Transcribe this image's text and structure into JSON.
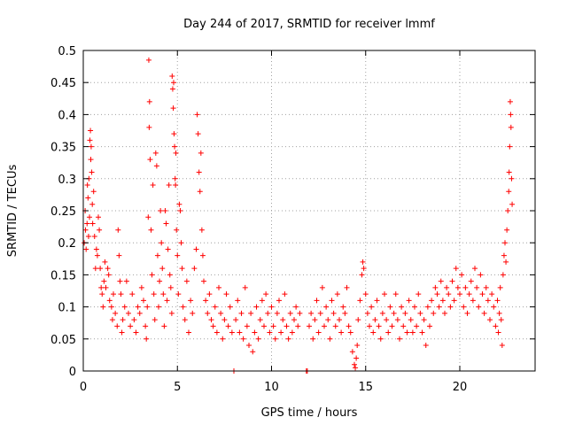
{
  "chart_data": {
    "type": "scatter",
    "title": "Day 244 of 2017, SRMTID for receiver lmmf",
    "xlabel": "GPS time / hours",
    "ylabel": "SRMTID / TECUs",
    "xlim": [
      0,
      24
    ],
    "ylim": [
      0,
      0.5
    ],
    "x_ticks": [
      0,
      5,
      10,
      15,
      20
    ],
    "x_tick_labels": [
      "0",
      "5",
      "10",
      "15",
      "20"
    ],
    "y_ticks": [
      0,
      0.05,
      0.1,
      0.15,
      0.2,
      0.25,
      0.3,
      0.35,
      0.4,
      0.45,
      0.5
    ],
    "y_tick_labels": [
      "0",
      "0.05",
      "0.1",
      "0.15",
      "0.2",
      "0.25",
      "0.3",
      "0.35",
      "0.4",
      "0.45",
      "0.5"
    ],
    "grid": true,
    "marker": "+",
    "color": "#ff0000",
    "series": [
      {
        "name": "SRMTID",
        "points": [
          [
            0.05,
            0.2
          ],
          [
            0.1,
            0.25
          ],
          [
            0.12,
            0.22
          ],
          [
            0.15,
            0.19
          ],
          [
            0.2,
            0.23
          ],
          [
            0.22,
            0.29
          ],
          [
            0.25,
            0.27
          ],
          [
            0.28,
            0.21
          ],
          [
            0.3,
            0.3
          ],
          [
            0.33,
            0.24
          ],
          [
            0.35,
            0.36
          ],
          [
            0.38,
            0.375
          ],
          [
            0.4,
            0.33
          ],
          [
            0.42,
            0.35
          ],
          [
            0.45,
            0.31
          ],
          [
            0.48,
            0.26
          ],
          [
            0.5,
            0.23
          ],
          [
            0.55,
            0.28
          ],
          [
            0.6,
            0.21
          ],
          [
            0.65,
            0.16
          ],
          [
            0.7,
            0.19
          ],
          [
            0.75,
            0.18
          ],
          [
            0.8,
            0.24
          ],
          [
            0.85,
            0.22
          ],
          [
            0.9,
            0.16
          ],
          [
            0.95,
            0.13
          ],
          [
            1.0,
            0.12
          ],
          [
            1.05,
            0.1
          ],
          [
            1.1,
            0.14
          ],
          [
            1.15,
            0.17
          ],
          [
            1.2,
            0.13
          ],
          [
            1.3,
            0.16
          ],
          [
            1.35,
            0.15
          ],
          [
            1.4,
            0.11
          ],
          [
            1.5,
            0.1
          ],
          [
            1.55,
            0.08
          ],
          [
            1.6,
            0.12
          ],
          [
            1.7,
            0.09
          ],
          [
            1.8,
            0.07
          ],
          [
            1.85,
            0.22
          ],
          [
            1.9,
            0.18
          ],
          [
            1.95,
            0.14
          ],
          [
            2.0,
            0.12
          ],
          [
            2.05,
            0.06
          ],
          [
            2.1,
            0.08
          ],
          [
            2.2,
            0.1
          ],
          [
            2.3,
            0.14
          ],
          [
            2.4,
            0.09
          ],
          [
            2.5,
            0.07
          ],
          [
            2.6,
            0.12
          ],
          [
            2.7,
            0.08
          ],
          [
            2.8,
            0.06
          ],
          [
            2.9,
            0.1
          ],
          [
            3.0,
            0.09
          ],
          [
            3.1,
            0.13
          ],
          [
            3.2,
            0.11
          ],
          [
            3.3,
            0.07
          ],
          [
            3.35,
            0.05
          ],
          [
            3.4,
            0.1
          ],
          [
            3.45,
            0.24
          ],
          [
            3.48,
            0.485
          ],
          [
            3.5,
            0.38
          ],
          [
            3.52,
            0.42
          ],
          [
            3.55,
            0.33
          ],
          [
            3.6,
            0.22
          ],
          [
            3.65,
            0.15
          ],
          [
            3.7,
            0.29
          ],
          [
            3.75,
            0.12
          ],
          [
            3.8,
            0.08
          ],
          [
            3.85,
            0.34
          ],
          [
            3.9,
            0.32
          ],
          [
            3.95,
            0.18
          ],
          [
            4.0,
            0.1
          ],
          [
            4.05,
            0.14
          ],
          [
            4.1,
            0.25
          ],
          [
            4.15,
            0.2
          ],
          [
            4.2,
            0.16
          ],
          [
            4.25,
            0.12
          ],
          [
            4.3,
            0.07
          ],
          [
            4.35,
            0.25
          ],
          [
            4.4,
            0.23
          ],
          [
            4.45,
            0.11
          ],
          [
            4.5,
            0.19
          ],
          [
            4.55,
            0.29
          ],
          [
            4.6,
            0.15
          ],
          [
            4.65,
            0.13
          ],
          [
            4.7,
            0.09
          ],
          [
            4.72,
            0.46
          ],
          [
            4.75,
            0.44
          ],
          [
            4.78,
            0.41
          ],
          [
            4.8,
            0.45
          ],
          [
            4.82,
            0.37
          ],
          [
            4.85,
            0.35
          ],
          [
            4.88,
            0.3
          ],
          [
            4.9,
            0.29
          ],
          [
            4.92,
            0.34
          ],
          [
            4.95,
            0.22
          ],
          [
            5.0,
            0.18
          ],
          [
            5.05,
            0.12
          ],
          [
            5.1,
            0.26
          ],
          [
            5.15,
            0.25
          ],
          [
            5.2,
            0.2
          ],
          [
            5.25,
            0.16
          ],
          [
            5.3,
            0.1
          ],
          [
            5.4,
            0.08
          ],
          [
            5.5,
            0.14
          ],
          [
            5.6,
            0.06
          ],
          [
            5.7,
            0.11
          ],
          [
            5.8,
            0.09
          ],
          [
            5.9,
            0.16
          ],
          [
            6.0,
            0.19
          ],
          [
            6.05,
            0.4
          ],
          [
            6.1,
            0.37
          ],
          [
            6.15,
            0.31
          ],
          [
            6.2,
            0.28
          ],
          [
            6.25,
            0.34
          ],
          [
            6.3,
            0.22
          ],
          [
            6.35,
            0.18
          ],
          [
            6.4,
            0.14
          ],
          [
            6.5,
            0.11
          ],
          [
            6.6,
            0.09
          ],
          [
            6.7,
            0.12
          ],
          [
            6.8,
            0.08
          ],
          [
            6.9,
            0.07
          ],
          [
            7.0,
            0.1
          ],
          [
            7.1,
            0.06
          ],
          [
            7.2,
            0.13
          ],
          [
            7.3,
            0.09
          ],
          [
            7.4,
            0.05
          ],
          [
            7.5,
            0.08
          ],
          [
            7.6,
            0.12
          ],
          [
            7.7,
            0.07
          ],
          [
            7.8,
            0.1
          ],
          [
            7.9,
            0.06
          ],
          [
            8.0,
            0.0
          ],
          [
            8.1,
            0.08
          ],
          [
            8.2,
            0.11
          ],
          [
            8.3,
            0.06
          ],
          [
            8.4,
            0.09
          ],
          [
            8.5,
            0.05
          ],
          [
            8.6,
            0.13
          ],
          [
            8.7,
            0.07
          ],
          [
            8.8,
            0.04
          ],
          [
            8.9,
            0.09
          ],
          [
            9.0,
            0.03
          ],
          [
            9.1,
            0.06
          ],
          [
            9.2,
            0.1
          ],
          [
            9.3,
            0.05
          ],
          [
            9.4,
            0.08
          ],
          [
            9.5,
            0.11
          ],
          [
            9.6,
            0.07
          ],
          [
            9.7,
            0.12
          ],
          [
            9.8,
            0.09
          ],
          [
            9.9,
            0.06
          ],
          [
            10.0,
            0.1
          ],
          [
            10.1,
            0.07
          ],
          [
            10.2,
            0.05
          ],
          [
            10.3,
            0.09
          ],
          [
            10.4,
            0.11
          ],
          [
            10.5,
            0.06
          ],
          [
            10.6,
            0.08
          ],
          [
            10.7,
            0.12
          ],
          [
            10.8,
            0.07
          ],
          [
            10.9,
            0.05
          ],
          [
            11.0,
            0.09
          ],
          [
            11.1,
            0.06
          ],
          [
            11.2,
            0.08
          ],
          [
            11.3,
            0.1
          ],
          [
            11.4,
            0.07
          ],
          [
            11.5,
            0.09
          ],
          [
            11.85,
            0.0
          ],
          [
            11.9,
            0.0
          ],
          [
            12.0,
            0.07
          ],
          [
            12.1,
            0.09
          ],
          [
            12.2,
            0.05
          ],
          [
            12.3,
            0.08
          ],
          [
            12.4,
            0.11
          ],
          [
            12.5,
            0.06
          ],
          [
            12.6,
            0.09
          ],
          [
            12.7,
            0.13
          ],
          [
            12.8,
            0.07
          ],
          [
            12.9,
            0.1
          ],
          [
            13.0,
            0.08
          ],
          [
            13.1,
            0.05
          ],
          [
            13.2,
            0.11
          ],
          [
            13.3,
            0.09
          ],
          [
            13.4,
            0.07
          ],
          [
            13.5,
            0.12
          ],
          [
            13.6,
            0.08
          ],
          [
            13.7,
            0.06
          ],
          [
            13.8,
            0.1
          ],
          [
            13.9,
            0.09
          ],
          [
            14.0,
            0.13
          ],
          [
            14.1,
            0.07
          ],
          [
            14.2,
            0.06
          ],
          [
            14.3,
            0.03
          ],
          [
            14.4,
            0.01
          ],
          [
            14.45,
            0.005
          ],
          [
            14.5,
            0.02
          ],
          [
            14.55,
            0.04
          ],
          [
            14.6,
            0.08
          ],
          [
            14.7,
            0.11
          ],
          [
            14.8,
            0.15
          ],
          [
            14.85,
            0.17
          ],
          [
            14.9,
            0.16
          ],
          [
            15.0,
            0.12
          ],
          [
            15.1,
            0.09
          ],
          [
            15.2,
            0.07
          ],
          [
            15.3,
            0.1
          ],
          [
            15.4,
            0.06
          ],
          [
            15.5,
            0.08
          ],
          [
            15.6,
            0.11
          ],
          [
            15.7,
            0.07
          ],
          [
            15.8,
            0.05
          ],
          [
            15.9,
            0.09
          ],
          [
            16.0,
            0.12
          ],
          [
            16.1,
            0.08
          ],
          [
            16.2,
            0.06
          ],
          [
            16.3,
            0.1
          ],
          [
            16.4,
            0.07
          ],
          [
            16.5,
            0.09
          ],
          [
            16.6,
            0.12
          ],
          [
            16.7,
            0.08
          ],
          [
            16.8,
            0.05
          ],
          [
            16.9,
            0.1
          ],
          [
            17.0,
            0.07
          ],
          [
            17.1,
            0.09
          ],
          [
            17.2,
            0.06
          ],
          [
            17.3,
            0.11
          ],
          [
            17.4,
            0.08
          ],
          [
            17.5,
            0.06
          ],
          [
            17.6,
            0.1
          ],
          [
            17.7,
            0.07
          ],
          [
            17.8,
            0.12
          ],
          [
            17.9,
            0.09
          ],
          [
            18.0,
            0.06
          ],
          [
            18.1,
            0.08
          ],
          [
            18.2,
            0.04
          ],
          [
            18.3,
            0.1
          ],
          [
            18.4,
            0.07
          ],
          [
            18.5,
            0.11
          ],
          [
            18.6,
            0.09
          ],
          [
            18.7,
            0.13
          ],
          [
            18.8,
            0.12
          ],
          [
            18.9,
            0.1
          ],
          [
            19.0,
            0.14
          ],
          [
            19.1,
            0.11
          ],
          [
            19.2,
            0.09
          ],
          [
            19.3,
            0.13
          ],
          [
            19.4,
            0.12
          ],
          [
            19.5,
            0.1
          ],
          [
            19.6,
            0.14
          ],
          [
            19.7,
            0.11
          ],
          [
            19.8,
            0.16
          ],
          [
            19.9,
            0.13
          ],
          [
            20.0,
            0.12
          ],
          [
            20.1,
            0.15
          ],
          [
            20.2,
            0.1
          ],
          [
            20.3,
            0.13
          ],
          [
            20.4,
            0.09
          ],
          [
            20.5,
            0.12
          ],
          [
            20.6,
            0.14
          ],
          [
            20.7,
            0.11
          ],
          [
            20.8,
            0.16
          ],
          [
            20.9,
            0.13
          ],
          [
            21.0,
            0.1
          ],
          [
            21.1,
            0.15
          ],
          [
            21.2,
            0.12
          ],
          [
            21.3,
            0.09
          ],
          [
            21.4,
            0.13
          ],
          [
            21.5,
            0.11
          ],
          [
            21.6,
            0.08
          ],
          [
            21.7,
            0.12
          ],
          [
            21.8,
            0.1
          ],
          [
            21.9,
            0.07
          ],
          [
            22.0,
            0.11
          ],
          [
            22.05,
            0.06
          ],
          [
            22.1,
            0.09
          ],
          [
            22.15,
            0.13
          ],
          [
            22.2,
            0.08
          ],
          [
            22.25,
            0.04
          ],
          [
            22.3,
            0.15
          ],
          [
            22.35,
            0.18
          ],
          [
            22.4,
            0.2
          ],
          [
            22.45,
            0.17
          ],
          [
            22.5,
            0.22
          ],
          [
            22.55,
            0.25
          ],
          [
            22.6,
            0.28
          ],
          [
            22.62,
            0.31
          ],
          [
            22.65,
            0.35
          ],
          [
            22.68,
            0.42
          ],
          [
            22.7,
            0.4
          ],
          [
            22.72,
            0.38
          ],
          [
            22.75,
            0.3
          ],
          [
            22.78,
            0.26
          ]
        ]
      }
    ]
  }
}
